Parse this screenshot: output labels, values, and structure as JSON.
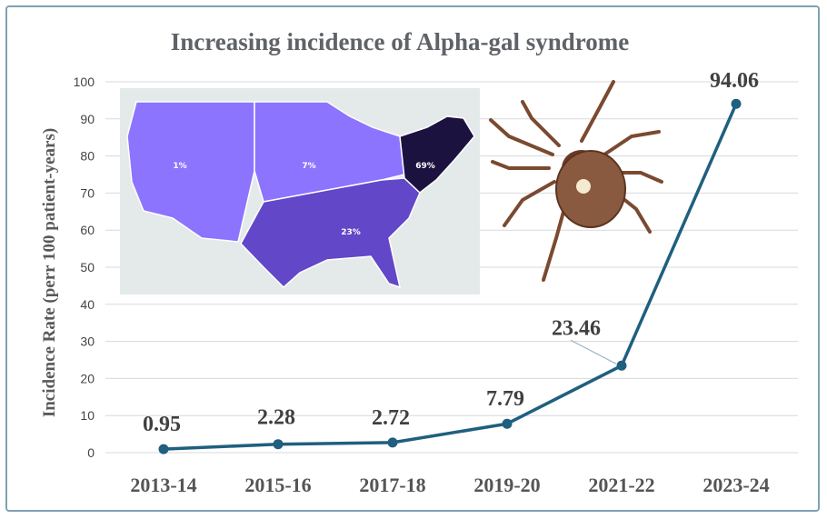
{
  "chart_data": {
    "type": "line",
    "title": "Increasing incidence of Alpha-gal syndrome",
    "ylabel": "Incidence Rate (perr 100 patient-years)",
    "xlabel": "",
    "categories": [
      "2013-14",
      "2015-16",
      "2017-18",
      "2019-20",
      "2021-22",
      "2023-24"
    ],
    "series": [
      {
        "values": [
          0.95,
          2.28,
          2.72,
          7.79,
          23.46,
          94.06
        ],
        "color": "#1f5f7f"
      }
    ],
    "data_labels": [
      "0.95",
      "2.28",
      "2.72",
      "7.79",
      "23.46",
      "94.06"
    ],
    "ylim": [
      0,
      100
    ],
    "yticks": [
      0,
      10,
      20,
      30,
      40,
      50,
      60,
      70,
      80,
      90,
      100
    ],
    "grid": true,
    "legend": "none"
  },
  "inset_map": {
    "regions": [
      {
        "label": "1%",
        "color": "#8c74ff"
      },
      {
        "label": "7%",
        "color": "#8c74ff"
      },
      {
        "label": "23%",
        "color": "#6247c8"
      },
      {
        "label": "69%",
        "color": "#1c1240"
      }
    ]
  },
  "illustration": "tick-image"
}
